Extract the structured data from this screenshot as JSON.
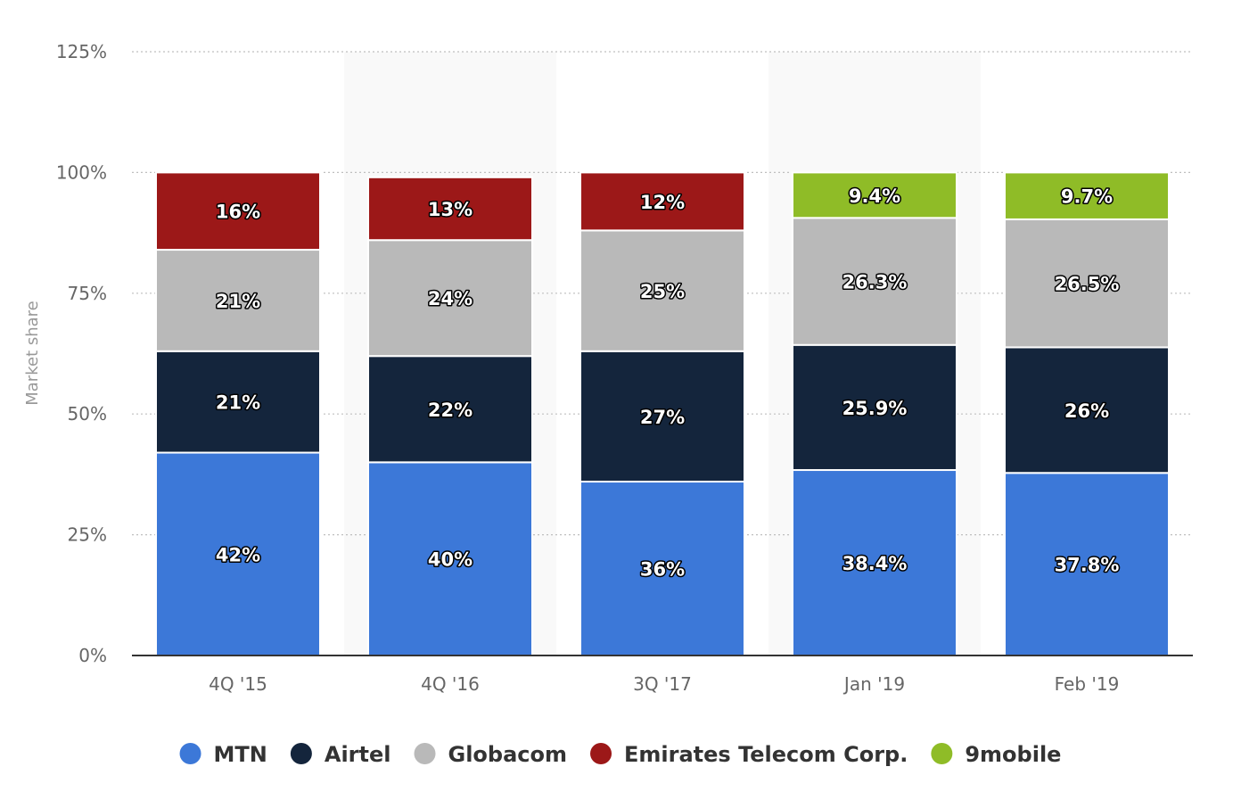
{
  "chart_data": {
    "type": "bar",
    "stacked": true,
    "categories": [
      "4Q '15",
      "4Q '16",
      "3Q '17",
      "Jan '19",
      "Feb '19"
    ],
    "ylabel": "Market share",
    "xlabel": "",
    "ylim": [
      0,
      125
    ],
    "yticks": [
      0,
      25,
      50,
      75,
      100,
      125
    ],
    "ytick_labels": [
      "0%",
      "25%",
      "50%",
      "75%",
      "100%",
      "125%"
    ],
    "grid": true,
    "legend_position": "bottom-center",
    "series": [
      {
        "name": "MTN",
        "color": "#3c78d8",
        "values": [
          42,
          40,
          36,
          38.4,
          37.8
        ],
        "labels": [
          "42%",
          "40%",
          "36%",
          "38.4%",
          "37.8%"
        ]
      },
      {
        "name": "Airtel",
        "color": "#14253c",
        "values": [
          21,
          22,
          27,
          25.9,
          26
        ],
        "labels": [
          "21%",
          "22%",
          "27%",
          "25.9%",
          "26%"
        ]
      },
      {
        "name": "Globacom",
        "color": "#b9b9b9",
        "values": [
          21,
          24,
          25,
          26.3,
          26.5
        ],
        "labels": [
          "21%",
          "24%",
          "25%",
          "26.3%",
          "26.5%"
        ]
      },
      {
        "name": "Emirates Telecom Corp.",
        "color": "#9c1818",
        "values": [
          16,
          13,
          12,
          null,
          null
        ],
        "labels": [
          "16%",
          "13%",
          "12%",
          "",
          ""
        ]
      },
      {
        "name": "9mobile",
        "color": "#8fbc27",
        "values": [
          null,
          null,
          null,
          9.4,
          9.7
        ],
        "labels": [
          "",
          "",
          "",
          "9.4%",
          "9.7%"
        ]
      }
    ]
  }
}
